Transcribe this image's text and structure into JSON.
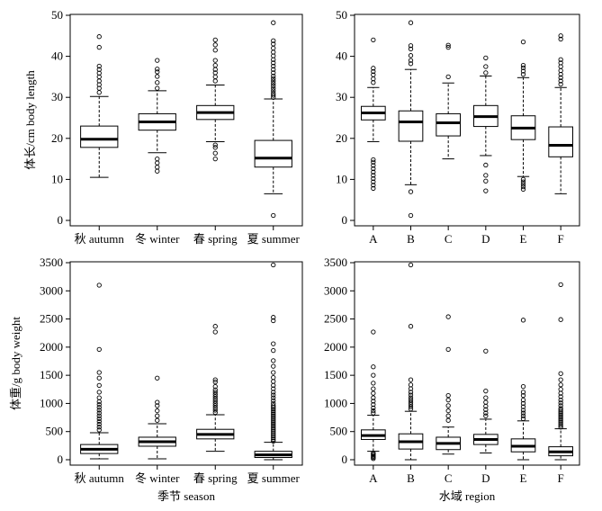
{
  "chart_data": [
    {
      "type": "box",
      "panel": "top-left",
      "xlabel": "",
      "ylabel": "体长/cm body length",
      "ylim": [
        0,
        50
      ],
      "yticks": [
        0,
        10,
        20,
        30,
        40,
        50
      ],
      "categories": [
        "秋 autumn",
        "冬 winter",
        "春 spring",
        "夏 summer"
      ],
      "boxes": [
        {
          "q1": 17.8,
          "median": 19.8,
          "q3": 23,
          "whisker_low": 10.5,
          "whisker_high": 30.2,
          "outliers": [
            31.2,
            32.2,
            33.1,
            34,
            35,
            35.9,
            36.8,
            37.6,
            42.2,
            44.8
          ]
        },
        {
          "q1": 22,
          "median": 24,
          "q3": 26,
          "whisker_low": 16.5,
          "whisker_high": 31.6,
          "outliers": [
            12,
            13,
            14,
            15,
            32.2,
            33.6,
            35.1,
            36.2,
            36.9,
            39
          ]
        },
        {
          "q1": 24.6,
          "median": 26.3,
          "q3": 28,
          "whisker_low": 19.2,
          "whisker_high": 33,
          "outliers": [
            15,
            16.4,
            17.8,
            18.4,
            34,
            35,
            36,
            36.8,
            37.8,
            39,
            41.5,
            42.8,
            44
          ]
        },
        {
          "q1": 13,
          "median": 15.2,
          "q3": 19.5,
          "whisker_low": 6.5,
          "whisker_high": 29.6,
          "outliers": [
            1.2,
            30,
            30.5,
            31,
            31.6,
            32.2,
            32.8,
            33.4,
            34,
            34.6,
            35.2,
            36,
            36.8,
            37.6,
            38.4,
            39.2,
            40.1,
            41,
            42,
            43,
            43.8,
            48.2
          ]
        }
      ]
    },
    {
      "type": "box",
      "panel": "top-right",
      "xlabel": "",
      "ylabel": "",
      "ylim": [
        0,
        50
      ],
      "yticks": [
        0,
        10,
        20,
        30,
        40,
        50
      ],
      "categories": [
        "A",
        "B",
        "C",
        "D",
        "E",
        "F"
      ],
      "boxes": [
        {
          "q1": 24.5,
          "median": 26.2,
          "q3": 27.8,
          "whisker_low": 19.2,
          "whisker_high": 32.4,
          "outliers": [
            7.8,
            8.6,
            9.4,
            10.2,
            11,
            11.8,
            12.6,
            13.4,
            14.2,
            14.8,
            33.6,
            34.5,
            35.5,
            36.3,
            37.1,
            44
          ]
        },
        {
          "q1": 19.3,
          "median": 24,
          "q3": 26.7,
          "whisker_low": 8.7,
          "whisker_high": 36.8,
          "outliers": [
            1.2,
            7,
            38.2,
            39,
            40.2,
            41.8,
            42.6,
            48.2
          ]
        },
        {
          "q1": 20.6,
          "median": 23.8,
          "q3": 26,
          "whisker_low": 15,
          "whisker_high": 33.5,
          "outliers": [
            35,
            42.2,
            42.7
          ]
        },
        {
          "q1": 22.9,
          "median": 25.3,
          "q3": 28,
          "whisker_low": 15.8,
          "whisker_high": 35.2,
          "outliers": [
            7.2,
            9.6,
            11,
            13.5,
            36,
            37.5,
            39.6
          ]
        },
        {
          "q1": 19.7,
          "median": 22.5,
          "q3": 25.5,
          "whisker_low": 10.7,
          "whisker_high": 34.8,
          "outliers": [
            7.6,
            8.2,
            8.8,
            9.4,
            10,
            35.6,
            36.4,
            37.2,
            37.8,
            43.5
          ]
        },
        {
          "q1": 15.5,
          "median": 18.3,
          "q3": 22.8,
          "whisker_low": 6.5,
          "whisker_high": 32.4,
          "outliers": [
            33.2,
            34,
            34.8,
            35.6,
            36.5,
            37.5,
            38.4,
            39.2,
            44.2,
            45
          ]
        }
      ]
    },
    {
      "type": "box",
      "panel": "bottom-left",
      "xlabel": "季节 season",
      "ylabel": "体重/g body weight",
      "ylim": [
        0,
        3500
      ],
      "yticks": [
        0,
        500,
        1000,
        1500,
        2000,
        2500,
        3000,
        3500
      ],
      "categories": [
        "秋 autumn",
        "冬 winter",
        "春 spring",
        "夏 summer"
      ],
      "boxes": [
        {
          "q1": 110,
          "median": 185,
          "q3": 270,
          "whisker_low": 15,
          "whisker_high": 480,
          "outliers": [
            530,
            580,
            630,
            680,
            730,
            780,
            830,
            880,
            930,
            980,
            1030,
            1100,
            1200,
            1320,
            1450,
            1550,
            1960,
            3100
          ]
        },
        {
          "q1": 240,
          "median": 320,
          "q3": 400,
          "whisker_low": 15,
          "whisker_high": 640,
          "outliers": [
            700,
            780,
            870,
            960,
            1020,
            1450
          ]
        },
        {
          "q1": 370,
          "median": 450,
          "q3": 540,
          "whisker_low": 150,
          "whisker_high": 800,
          "outliers": [
            840,
            880,
            920,
            960,
            1000,
            1040,
            1080,
            1120,
            1160,
            1200,
            1240,
            1300,
            1380,
            1420,
            2270,
            2370
          ]
        },
        {
          "q1": 40,
          "median": 85,
          "q3": 150,
          "whisker_low": 0,
          "whisker_high": 310,
          "outliers": [
            330,
            360,
            390,
            420,
            450,
            480,
            510,
            540,
            570,
            600,
            630,
            660,
            690,
            720,
            750,
            780,
            810,
            840,
            870,
            900,
            930,
            960,
            1000,
            1050,
            1100,
            1150,
            1200,
            1260,
            1320,
            1390,
            1460,
            1550,
            1660,
            1760,
            1940,
            2060,
            2470,
            2530,
            3460
          ]
        }
      ]
    },
    {
      "type": "box",
      "panel": "bottom-right",
      "xlabel": "水域 region",
      "ylabel": "",
      "ylim": [
        0,
        3500
      ],
      "yticks": [
        0,
        500,
        1000,
        1500,
        2000,
        2500,
        3000,
        3500
      ],
      "categories": [
        "A",
        "B",
        "C",
        "D",
        "E",
        "F"
      ],
      "boxes": [
        {
          "q1": 360,
          "median": 430,
          "q3": 530,
          "whisker_low": 150,
          "whisker_high": 790,
          "outliers": [
            20,
            40,
            60,
            80,
            100,
            120,
            830,
            870,
            920,
            980,
            1040,
            1100,
            1180,
            1260,
            1360,
            1500,
            1650,
            2270
          ]
        },
        {
          "q1": 190,
          "median": 320,
          "q3": 460,
          "whisker_low": 0,
          "whisker_high": 860,
          "outliers": [
            900,
            940,
            980,
            1020,
            1060,
            1100,
            1150,
            1200,
            1260,
            1330,
            1420,
            2370,
            3460
          ]
        },
        {
          "q1": 180,
          "median": 290,
          "q3": 400,
          "whisker_low": 100,
          "whisker_high": 580,
          "outliers": [
            700,
            780,
            870,
            960,
            1060,
            1140,
            1960,
            2540
          ]
        },
        {
          "q1": 270,
          "median": 360,
          "q3": 450,
          "whisker_low": 120,
          "whisker_high": 720,
          "outliers": [
            780,
            830,
            890,
            950,
            1020,
            1100,
            1220,
            1930
          ]
        },
        {
          "q1": 140,
          "median": 240,
          "q3": 370,
          "whisker_low": 0,
          "whisker_high": 690,
          "outliers": [
            730,
            780,
            830,
            880,
            940,
            1000,
            1060,
            1140,
            1200,
            1300,
            2480
          ]
        },
        {
          "q1": 70,
          "median": 140,
          "q3": 230,
          "whisker_low": 0,
          "whisker_high": 550,
          "outliers": [
            580,
            610,
            640,
            670,
            700,
            730,
            760,
            790,
            820,
            850,
            880,
            910,
            960,
            1010,
            1060,
            1120,
            1180,
            1250,
            1330,
            1420,
            1530,
            2490,
            3110
          ]
        }
      ]
    }
  ]
}
